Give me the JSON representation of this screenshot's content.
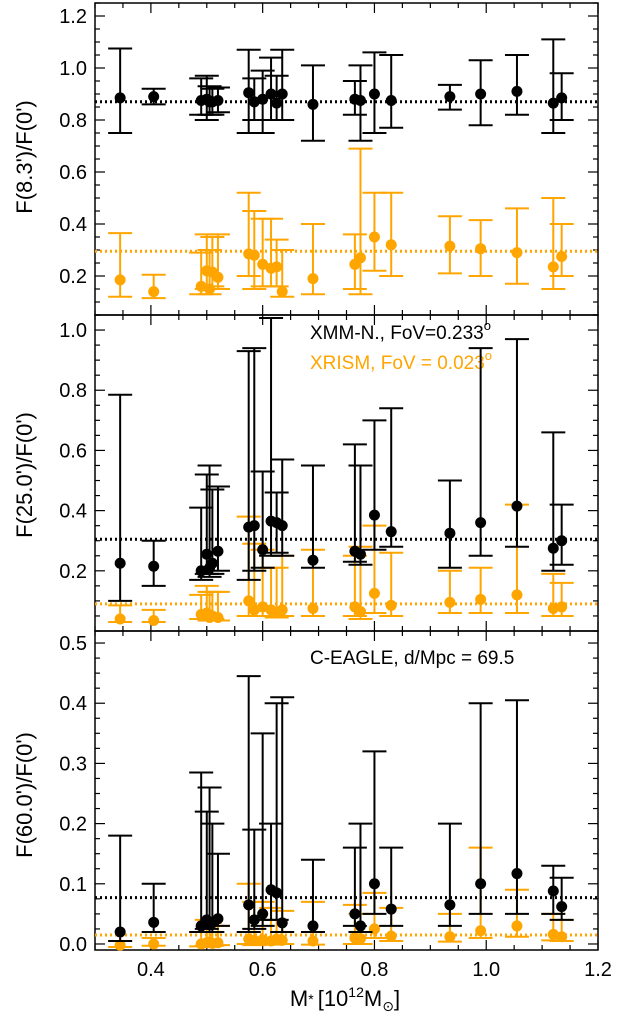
{
  "chart_data": [
    {
      "type": "scatter",
      "ylabel": "F(8.3')/F(0')",
      "xlim": [
        0.3,
        1.2
      ],
      "ylim": [
        0.05,
        1.25
      ],
      "yticks": [
        0.2,
        0.4,
        0.6,
        0.8,
        1.0,
        1.2
      ],
      "yticklabels": [
        "0.2",
        "0.4",
        "0.6",
        "0.8",
        "1.0",
        "1.2"
      ],
      "reference_lines": [
        {
          "series": "XMM-N.",
          "y": 0.87
        },
        {
          "series": "XRISM",
          "y": 0.295
        }
      ],
      "series": [
        {
          "color": "#000000",
          "x": [
            0.345,
            0.405,
            0.49,
            0.5,
            0.505,
            0.51,
            0.52,
            0.575,
            0.585,
            0.6,
            0.615,
            0.625,
            0.635,
            0.69,
            0.765,
            0.775,
            0.8,
            0.83,
            0.935,
            0.99,
            1.055,
            1.12,
            1.135
          ],
          "y": [
            0.885,
            0.89,
            0.875,
            0.88,
            0.87,
            0.87,
            0.875,
            0.905,
            0.87,
            0.88,
            0.9,
            0.865,
            0.9,
            0.86,
            0.88,
            0.875,
            0.9,
            0.875,
            0.89,
            0.9,
            0.91,
            0.865,
            0.885
          ],
          "y_low": [
            0.75,
            0.86,
            0.82,
            0.8,
            0.82,
            0.82,
            0.83,
            0.75,
            0.8,
            0.75,
            0.8,
            0.8,
            0.8,
            0.72,
            0.82,
            0.72,
            0.75,
            0.77,
            0.84,
            0.78,
            0.82,
            0.75,
            0.8
          ],
          "y_high": [
            1.075,
            0.92,
            0.96,
            0.97,
            0.93,
            0.92,
            0.925,
            1.07,
            0.96,
            0.99,
            1.04,
            0.97,
            1.07,
            1.01,
            0.95,
            1.01,
            1.06,
            1.05,
            0.935,
            1.03,
            1.05,
            1.11,
            0.98
          ]
        },
        {
          "color": "#ffa500",
          "x": [
            0.345,
            0.405,
            0.49,
            0.5,
            0.505,
            0.51,
            0.52,
            0.575,
            0.585,
            0.6,
            0.615,
            0.625,
            0.635,
            0.69,
            0.765,
            0.775,
            0.8,
            0.83,
            0.935,
            0.99,
            1.055,
            1.12,
            1.135
          ],
          "y": [
            0.185,
            0.14,
            0.16,
            0.22,
            0.15,
            0.215,
            0.195,
            0.285,
            0.28,
            0.245,
            0.23,
            0.235,
            0.14,
            0.19,
            0.245,
            0.27,
            0.35,
            0.32,
            0.315,
            0.305,
            0.29,
            0.235,
            0.275
          ],
          "y_low": [
            0.12,
            0.115,
            0.13,
            0.15,
            0.13,
            0.16,
            0.15,
            0.2,
            0.15,
            0.16,
            0.16,
            0.16,
            0.12,
            0.13,
            0.15,
            0.13,
            0.22,
            0.2,
            0.21,
            0.2,
            0.17,
            0.15,
            0.2
          ],
          "y_high": [
            0.365,
            0.205,
            0.29,
            0.36,
            0.3,
            0.35,
            0.36,
            0.52,
            0.45,
            0.42,
            0.42,
            0.34,
            0.3,
            0.4,
            0.36,
            0.69,
            0.52,
            0.52,
            0.43,
            0.415,
            0.46,
            0.5,
            0.4
          ]
        }
      ]
    },
    {
      "type": "scatter",
      "ylabel": "F(25.0')/F(0')",
      "xlim": [
        0.3,
        1.2
      ],
      "ylim": [
        0.0,
        1.05
      ],
      "yticks": [
        0.2,
        0.4,
        0.6,
        0.8,
        1.0
      ],
      "yticklabels": [
        "0.2",
        "0.4",
        "0.6",
        "0.8",
        "1.0"
      ],
      "annotations": [
        {
          "text": "XMM-N., FoV=0.233",
          "sup": "o",
          "color": "#000000"
        },
        {
          "text": "XRISM, FoV = 0.023",
          "sup": "o",
          "color": "#ffa500"
        }
      ],
      "reference_lines": [
        {
          "series": "XMM-N.",
          "y": 0.305
        },
        {
          "series": "XRISM",
          "y": 0.09
        }
      ],
      "series": [
        {
          "color": "#000000",
          "x": [
            0.345,
            0.405,
            0.49,
            0.5,
            0.505,
            0.51,
            0.52,
            0.575,
            0.585,
            0.6,
            0.615,
            0.625,
            0.635,
            0.69,
            0.765,
            0.775,
            0.8,
            0.83,
            0.935,
            0.99,
            1.055,
            1.12,
            1.135
          ],
          "y": [
            0.225,
            0.215,
            0.2,
            0.255,
            0.21,
            0.225,
            0.265,
            0.345,
            0.35,
            0.27,
            0.365,
            0.36,
            0.35,
            0.235,
            0.265,
            0.255,
            0.385,
            0.33,
            0.325,
            0.36,
            0.415,
            0.275,
            0.3
          ],
          "y_low": [
            0.1,
            0.15,
            0.17,
            0.19,
            0.18,
            0.19,
            0.2,
            0.17,
            0.2,
            0.21,
            0.25,
            0.26,
            0.25,
            0.21,
            0.23,
            0.22,
            0.27,
            0.28,
            0.21,
            0.25,
            0.28,
            0.2,
            0.22
          ],
          "y_high": [
            0.785,
            0.3,
            0.41,
            0.52,
            0.55,
            0.47,
            0.48,
            0.93,
            0.94,
            0.53,
            1.04,
            0.46,
            0.57,
            0.55,
            0.62,
            0.55,
            0.7,
            0.74,
            0.5,
            0.94,
            0.97,
            0.66,
            0.42
          ]
        },
        {
          "color": "#ffa500",
          "x": [
            0.345,
            0.405,
            0.49,
            0.5,
            0.505,
            0.51,
            0.52,
            0.575,
            0.585,
            0.6,
            0.615,
            0.625,
            0.635,
            0.69,
            0.765,
            0.775,
            0.8,
            0.83,
            0.935,
            0.99,
            1.055,
            1.12,
            1.135
          ],
          "y": [
            0.04,
            0.035,
            0.055,
            0.06,
            0.045,
            0.05,
            0.045,
            0.1,
            0.07,
            0.08,
            0.07,
            0.06,
            0.07,
            0.075,
            0.08,
            0.065,
            0.125,
            0.085,
            0.095,
            0.105,
            0.12,
            0.075,
            0.08
          ],
          "y_low": [
            0.03,
            0.03,
            0.04,
            0.04,
            0.035,
            0.04,
            0.035,
            0.05,
            0.05,
            0.05,
            0.05,
            0.045,
            0.05,
            0.05,
            0.05,
            0.04,
            0.06,
            0.05,
            0.06,
            0.06,
            0.06,
            0.05,
            0.05
          ],
          "y_high": [
            0.085,
            0.07,
            0.12,
            0.15,
            0.13,
            0.13,
            0.13,
            0.38,
            0.29,
            0.27,
            0.21,
            0.21,
            0.25,
            0.27,
            0.25,
            0.28,
            0.35,
            0.26,
            0.2,
            0.21,
            0.42,
            0.19,
            0.16
          ]
        }
      ]
    },
    {
      "type": "scatter",
      "ylabel": "F(60.0')/F(0')",
      "xlabel": "M",
      "xlabel_sub": "*",
      "xlabel_unit": "[10",
      "xlabel_unit_sup": "12",
      "xlabel_unit_tail": "M",
      "xlabel_unit_sun": "⊙",
      "xlabel_unit_close": "]",
      "xlim": [
        0.3,
        1.2
      ],
      "ylim": [
        -0.01,
        0.52
      ],
      "xticks": [
        0.4,
        0.6,
        0.8,
        1.0,
        1.2
      ],
      "xticklabels": [
        "0.4",
        "0.6",
        "0.8",
        "1.0",
        "1.2"
      ],
      "yticks": [
        0.0,
        0.1,
        0.2,
        0.3,
        0.4,
        0.5
      ],
      "yticklabels": [
        "0.0",
        "0.1",
        "0.2",
        "0.3",
        "0.4",
        "0.5"
      ],
      "annotations": [
        {
          "text": "C-EAGLE, d/Mpc  = 69.5",
          "color": "#000000"
        }
      ],
      "reference_lines": [
        {
          "series": "XMM-N.",
          "y": 0.077
        },
        {
          "series": "XRISM",
          "y": 0.015
        }
      ],
      "series": [
        {
          "color": "#000000",
          "x": [
            0.345,
            0.405,
            0.49,
            0.5,
            0.505,
            0.51,
            0.52,
            0.575,
            0.585,
            0.6,
            0.615,
            0.625,
            0.635,
            0.69,
            0.765,
            0.775,
            0.8,
            0.83,
            0.935,
            0.99,
            1.055,
            1.12,
            1.135
          ],
          "y": [
            0.02,
            0.036,
            0.03,
            0.04,
            0.032,
            0.035,
            0.042,
            0.065,
            0.04,
            0.05,
            0.09,
            0.085,
            0.035,
            0.03,
            0.05,
            0.03,
            0.1,
            0.058,
            0.065,
            0.1,
            0.117,
            0.088,
            0.062
          ],
          "y_low": [
            0.005,
            0.02,
            0.02,
            0.025,
            0.02,
            0.02,
            0.03,
            0.02,
            0.025,
            0.03,
            0.04,
            0.04,
            0.02,
            0.02,
            0.03,
            0.02,
            0.05,
            0.03,
            0.03,
            0.05,
            0.05,
            0.05,
            0.04
          ],
          "y_high": [
            0.18,
            0.1,
            0.285,
            0.22,
            0.26,
            0.2,
            0.15,
            0.445,
            0.19,
            0.35,
            0.2,
            0.4,
            0.41,
            0.14,
            0.16,
            0.2,
            0.32,
            0.16,
            0.2,
            0.4,
            0.405,
            0.13,
            0.11
          ]
        },
        {
          "color": "#ffa500",
          "x": [
            0.345,
            0.405,
            0.49,
            0.5,
            0.505,
            0.51,
            0.52,
            0.575,
            0.585,
            0.6,
            0.615,
            0.625,
            0.635,
            0.69,
            0.765,
            0.775,
            0.8,
            0.83,
            0.935,
            0.99,
            1.055,
            1.12,
            1.135
          ],
          "y": [
            -0.002,
            0.0,
            0.0,
            0.002,
            0.003,
            0.001,
            0.002,
            0.008,
            0.006,
            0.007,
            0.005,
            0.008,
            0.006,
            0.005,
            0.01,
            0.009,
            0.025,
            0.013,
            0.012,
            0.022,
            0.03,
            0.016,
            0.012
          ],
          "y_low": [
            -0.005,
            -0.003,
            -0.004,
            -0.003,
            -0.002,
            -0.003,
            -0.002,
            0.0,
            -0.002,
            0.0,
            -0.001,
            0.0,
            0.0,
            -0.001,
            0.0,
            0.0,
            0.01,
            0.005,
            0.004,
            0.01,
            0.012,
            0.006,
            0.005
          ],
          "y_high": [
            0.005,
            0.01,
            0.02,
            0.04,
            0.035,
            0.03,
            0.03,
            0.1,
            0.07,
            0.07,
            0.06,
            0.04,
            0.055,
            0.07,
            0.065,
            0.05,
            0.085,
            0.06,
            0.05,
            0.16,
            0.09,
            0.05,
            0.04
          ]
        }
      ]
    }
  ]
}
